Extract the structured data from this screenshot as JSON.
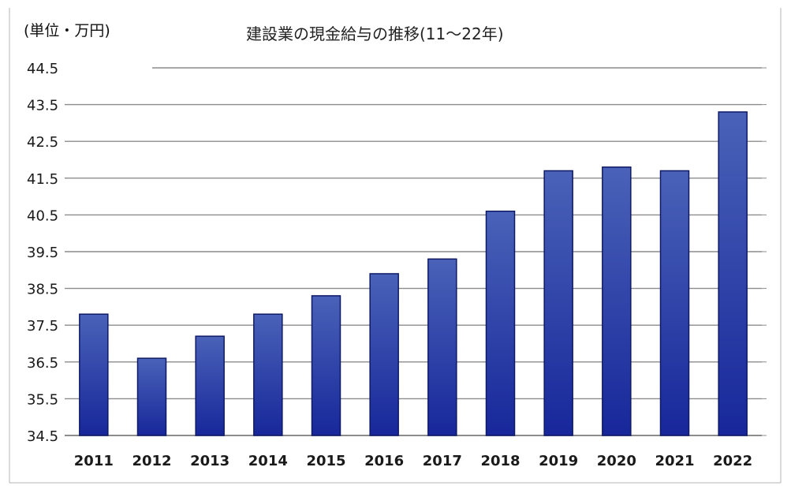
{
  "unit_label": "(単位・万円)",
  "title": "建設業の現金給与の推移(11～22年)",
  "colors": {
    "bar_top": "#4a62b8",
    "bar_bottom": "#17279a",
    "bar_stroke": "#0e1a66",
    "grid": "#8c8c8c"
  },
  "chart_data": {
    "type": "bar",
    "title": "建設業の現金給与の推移(11～22年)",
    "ylabel": "(単位・万円)",
    "xlabel": "",
    "categories": [
      "2011",
      "2012",
      "2013",
      "2014",
      "2015",
      "2016",
      "2017",
      "2018",
      "2019",
      "2020",
      "2021",
      "2022"
    ],
    "values": [
      37.8,
      36.6,
      37.2,
      37.8,
      38.3,
      38.9,
      39.3,
      40.6,
      41.7,
      41.8,
      41.7,
      43.3
    ],
    "ylim": [
      34.5,
      44.5
    ],
    "yticks": [
      "34.5",
      "35.5",
      "36.5",
      "37.5",
      "38.5",
      "39.5",
      "40.5",
      "41.5",
      "42.5",
      "43.5",
      "44.5"
    ],
    "grid": true,
    "legend": "none"
  }
}
